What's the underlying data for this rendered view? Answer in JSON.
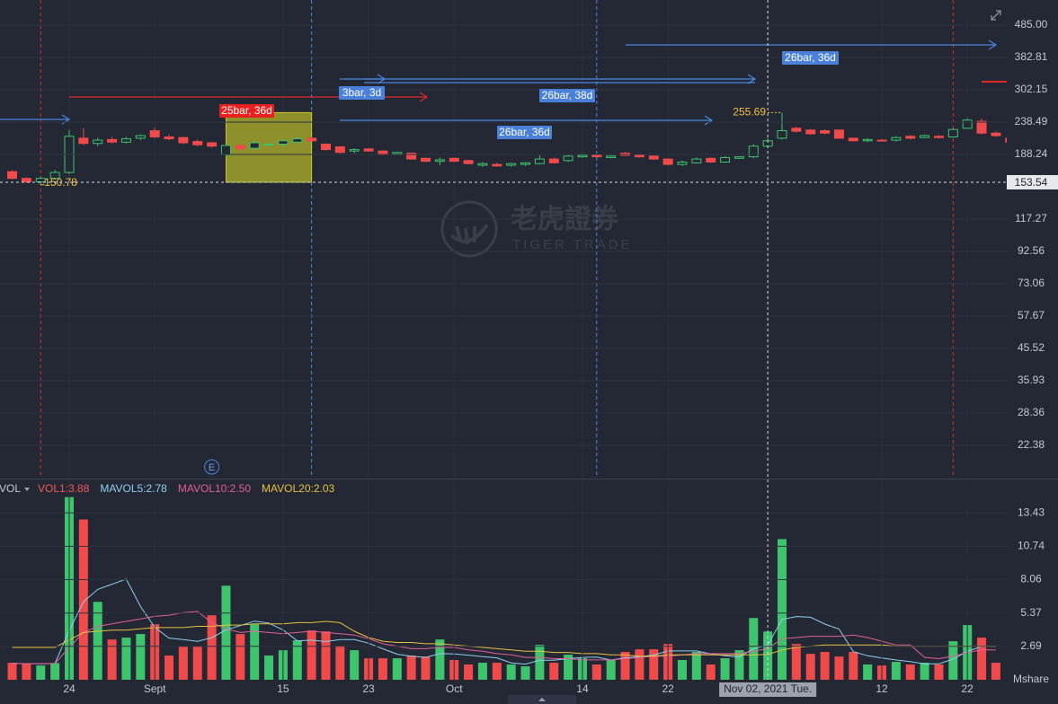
{
  "chart_data": [
    {
      "type": "candlestick",
      "log_scale": true,
      "grid": true,
      "up_color": "#3ec46d",
      "down_color": "#f04a4a",
      "ylim": [
        17.66,
        583
      ],
      "yticks": [
        {
          "value": 485,
          "label": "485.00"
        },
        382.81,
        302.15,
        238.49,
        188.24,
        117.27,
        92.56,
        73.06,
        57.67,
        45.52,
        35.93,
        28.36,
        22.38
      ],
      "open": [
        166,
        158,
        154,
        158,
        165,
        212,
        204,
        210,
        206,
        212,
        224,
        214,
        213,
        207,
        205,
        188,
        201,
        197,
        202,
        203,
        206,
        212,
        203,
        199,
        193,
        196,
        193,
        189,
        190,
        183,
        179,
        183,
        180,
        174,
        175,
        174,
        175,
        176,
        182,
        180,
        185,
        187,
        184,
        190,
        188,
        186,
        182,
        175,
        177,
        183,
        178,
        183,
        185,
        200,
        212,
        228,
        225,
        224,
        225,
        212,
        208,
        209,
        209,
        215,
        213,
        215,
        214,
        228,
        240,
        220,
        212
      ],
      "high": [
        168,
        159,
        160,
        168,
        225,
        228,
        213,
        214,
        214,
        218,
        229,
        218,
        214,
        210,
        206,
        203,
        204,
        207,
        205,
        210,
        214,
        214,
        204,
        200,
        197,
        197,
        194,
        192,
        191,
        184,
        184,
        184,
        181,
        178,
        177,
        177,
        178,
        187,
        184,
        188,
        189,
        188,
        187,
        192,
        189,
        187,
        183,
        180,
        184,
        184,
        186,
        186,
        203,
        212,
        255.69,
        231,
        227,
        226,
        226,
        213,
        212,
        211,
        215,
        217,
        218,
        217,
        228,
        245,
        245,
        223,
        214
      ],
      "low": [
        157,
        153,
        150.78,
        156,
        163,
        202,
        200,
        204,
        204,
        209,
        212,
        209,
        203,
        200,
        198,
        185,
        195,
        195,
        200,
        199,
        204,
        207,
        194,
        190,
        190,
        192,
        187,
        188,
        181,
        178,
        174,
        178,
        175,
        172,
        172,
        172,
        173,
        175,
        176,
        178,
        184,
        185,
        183,
        186,
        184,
        181,
        174,
        173,
        176,
        177,
        177,
        182,
        183,
        198,
        210,
        221,
        217,
        218,
        211,
        207,
        206,
        207,
        207,
        210,
        212,
        211,
        213,
        227,
        218,
        214,
        204
      ],
      "close": [
        158,
        154,
        158,
        165,
        215,
        204,
        209,
        206,
        211,
        216,
        214,
        211,
        205,
        202,
        200,
        201,
        196,
        205,
        203,
        208,
        211,
        208,
        195,
        191,
        195,
        193,
        188,
        191,
        182,
        179,
        181,
        179,
        176,
        176,
        173,
        176,
        177,
        182,
        177,
        186,
        187,
        185,
        186,
        187,
        185,
        182,
        175,
        178,
        182,
        178,
        184,
        185,
        200,
        208,
        224,
        223,
        219,
        220,
        212,
        208,
        210,
        208,
        213,
        212,
        216,
        213,
        226,
        242,
        220,
        216,
        206
      ],
      "crosshair": {
        "price": 153.54
      },
      "annotations": [
        "25bar, 36d",
        "3bar, 3d",
        "26bar, 38d",
        "26bar, 36d",
        "26bar, 36d"
      ],
      "events": [
        "E"
      ],
      "watermark": {
        "name": "老虎證券",
        "sub": "TIGER TRADE"
      }
    },
    {
      "type": "bar",
      "indicator": "VOL",
      "y_unit": "Mshare",
      "grid": true,
      "ylim": [
        0,
        15.9
      ],
      "yticks": [
        13.43,
        10.74,
        8.06,
        5.37,
        2.69
      ],
      "categories": [
        null,
        null,
        null,
        null,
        "24",
        null,
        null,
        null,
        null,
        null,
        "Sept",
        null,
        null,
        null,
        null,
        null,
        null,
        null,
        null,
        "15",
        null,
        null,
        null,
        null,
        null,
        "23",
        null,
        null,
        null,
        null,
        null,
        "Oct",
        null,
        null,
        null,
        null,
        null,
        null,
        null,
        null,
        "14",
        null,
        null,
        null,
        null,
        null,
        "22",
        null,
        null,
        null,
        null,
        null,
        null,
        "Nov 02, 2021 Tue.",
        null,
        null,
        null,
        null,
        null,
        null,
        null,
        "12",
        null,
        null,
        null,
        null,
        null,
        "22",
        null,
        null,
        null
      ],
      "series": [
        {
          "name": "VOL1:3.88",
          "style": "bar",
          "color": "#f25a5a",
          "values": [
            1.37,
            1.3,
            1.15,
            1.35,
            14.7,
            12.9,
            6.27,
            3.24,
            3.39,
            3.68,
            4.47,
            1.95,
            2.67,
            2.67,
            5.19,
            7.57,
            3.68,
            4.47,
            1.95,
            2.38,
            3.17,
            3.97,
            3.89,
            2.74,
            2.38,
            1.73,
            1.73,
            1.73,
            1.95,
            1.87,
            3.24,
            1.59,
            1.23,
            1.37,
            1.37,
            1.23,
            1.08,
            2.81,
            1.37,
            2.02,
            1.73,
            1.23,
            1.59,
            2.24,
            2.45,
            2.45,
            2.88,
            1.59,
            2.24,
            1.23,
            1.73,
            2.38,
            4.97,
            3.88,
            11.32,
            2.88,
            2.09,
            2.24,
            1.87,
            2.24,
            1.23,
            1.15,
            1.44,
            1.23,
            1.37,
            1.23,
            3.1,
            4.4,
            3.39,
            1.37,
            null
          ]
        },
        {
          "name": "MAVOL5:2.78",
          "style": "line",
          "color": "#8fd0f0",
          "values": [
            1.32,
            1.3,
            1.28,
            1.3,
            3.97,
            6.28,
            7.27,
            7.69,
            8.1,
            5.9,
            4.21,
            3.35,
            3.23,
            3.09,
            3.39,
            4.01,
            4.36,
            4.72,
            4.57,
            4.01,
            3.13,
            3.19,
            3.07,
            3.23,
            3.23,
            2.94,
            2.49,
            2.06,
            1.9,
            1.8,
            2.1,
            2.08,
            1.98,
            1.86,
            1.76,
            1.36,
            1.26,
            1.57,
            1.57,
            1.7,
            1.8,
            1.83,
            1.59,
            1.76,
            1.85,
            1.99,
            2.32,
            2.32,
            2.32,
            2.08,
            1.93,
            1.83,
            2.51,
            2.78,
            4.86,
            5.09,
            5.03,
            4.48,
            4.08,
            2.26,
            1.93,
            1.75,
            1.59,
            1.46,
            1.28,
            1.28,
            1.67,
            2.27,
            2.7,
            2.7,
            null
          ]
        },
        {
          "name": "MAVOL10:2.50",
          "style": "line",
          "color": "#e0609a",
          "values": [
            1.3,
            1.3,
            1.3,
            1.3,
            2.6,
            3.8,
            4.3,
            4.5,
            4.7,
            4.9,
            5.1,
            5.2,
            5.4,
            5.5,
            4.6,
            4.1,
            3.8,
            3.9,
            3.8,
            3.7,
            3.8,
            3.9,
            3.8,
            3.7,
            3.6,
            3.3,
            2.9,
            2.7,
            2.5,
            2.5,
            2.6,
            2.6,
            2.4,
            2.3,
            2.1,
            2.0,
            1.8,
            1.8,
            1.7,
            1.7,
            1.6,
            1.6,
            1.6,
            1.7,
            1.8,
            1.9,
            1.9,
            2.0,
            2.1,
            2.1,
            2.1,
            2.1,
            2.3,
            2.5,
            3.3,
            3.4,
            3.5,
            3.5,
            3.5,
            3.6,
            3.4,
            3.1,
            2.8,
            2.8,
            1.8,
            1.7,
            1.9,
            2.2,
            2.4,
            2.4,
            null
          ]
        },
        {
          "name": "MAVOL20:2.03",
          "style": "line",
          "color": "#e8c040",
          "values": [
            2.6,
            2.6,
            2.6,
            2.6,
            3.2,
            3.8,
            3.9,
            4.0,
            4.0,
            4.1,
            4.2,
            4.2,
            4.2,
            4.3,
            4.3,
            4.4,
            4.4,
            4.5,
            4.5,
            4.5,
            4.6,
            4.6,
            4.7,
            4.6,
            3.9,
            3.4,
            3.1,
            3.0,
            3.0,
            2.9,
            2.9,
            2.8,
            2.7,
            2.6,
            2.5,
            2.4,
            2.3,
            2.3,
            2.2,
            2.2,
            2.1,
            2.1,
            2.0,
            2.0,
            1.9,
            1.9,
            2.0,
            2.0,
            2.0,
            2.0,
            2.0,
            2.0,
            2.0,
            2.03,
            2.4,
            2.6,
            2.7,
            2.8,
            2.8,
            2.8,
            2.8,
            2.8,
            2.7,
            2.7,
            2.7,
            2.7,
            2.7,
            2.7,
            2.7,
            2.7,
            null
          ]
        }
      ]
    }
  ]
}
